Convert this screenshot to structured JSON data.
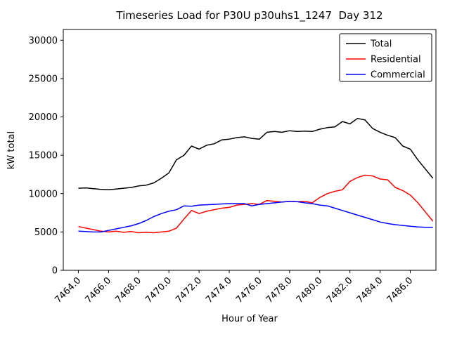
{
  "chart_data": {
    "type": "line",
    "title": "Timeseries Load for P30U p30uhs1_1247  Day 312",
    "xlabel": "Hour of Year",
    "ylabel": "kW total",
    "grid": false,
    "xlim": [
      7463.0,
      7487.7
    ],
    "ylim": [
      0,
      31400
    ],
    "xticks": [
      7464.0,
      7466.0,
      7468.0,
      7470.0,
      7472.0,
      7474.0,
      7476.0,
      7478.0,
      7480.0,
      7482.0,
      7484.0,
      7486.0
    ],
    "xtick_labels": [
      "7464.0",
      "7466.0",
      "7468.0",
      "7470.0",
      "7472.0",
      "7474.0",
      "7476.0",
      "7478.0",
      "7480.0",
      "7482.0",
      "7484.0",
      "7486.0"
    ],
    "yticks": [
      0,
      5000,
      10000,
      15000,
      20000,
      25000,
      30000
    ],
    "ytick_labels": [
      "0",
      "5000",
      "10000",
      "15000",
      "20000",
      "25000",
      "30000"
    ],
    "legend": {
      "position": "upper right",
      "entries": [
        "Total",
        "Residential",
        "Commercial"
      ]
    },
    "x": [
      7464.0,
      7464.5,
      7465.0,
      7465.5,
      7466.0,
      7466.5,
      7467.0,
      7467.5,
      7468.0,
      7468.5,
      7469.0,
      7469.5,
      7470.0,
      7470.5,
      7471.0,
      7471.5,
      7472.0,
      7472.5,
      7473.0,
      7473.5,
      7474.0,
      7474.5,
      7475.0,
      7475.5,
      7476.0,
      7476.5,
      7477.0,
      7477.5,
      7478.0,
      7478.5,
      7479.0,
      7479.5,
      7480.0,
      7480.5,
      7481.0,
      7481.5,
      7482.0,
      7482.5,
      7483.0,
      7483.5,
      7484.0,
      7484.5,
      7485.0,
      7485.5,
      7486.0,
      7486.5,
      7487.0,
      7487.5
    ],
    "series": [
      {
        "name": "Total",
        "color": "#000000",
        "values": [
          10700,
          10750,
          10650,
          10550,
          10500,
          10600,
          10700,
          10800,
          11000,
          11100,
          11400,
          12000,
          12700,
          14400,
          15000,
          16200,
          15800,
          16300,
          16500,
          17000,
          17100,
          17300,
          17400,
          17200,
          17100,
          18000,
          18100,
          18000,
          18200,
          18100,
          18150,
          18100,
          18400,
          18600,
          18700,
          19400,
          19100,
          19800,
          19600,
          18500,
          18000,
          17600,
          17300,
          16200,
          15800,
          14400,
          13200,
          12000
        ]
      },
      {
        "name": "Residential",
        "color": "#ff0000",
        "values": [
          5700,
          5500,
          5300,
          5100,
          5000,
          5100,
          4950,
          5050,
          4900,
          4950,
          4900,
          5000,
          5100,
          5500,
          6700,
          7800,
          7400,
          7700,
          7900,
          8100,
          8200,
          8500,
          8600,
          8700,
          8600,
          9100,
          9000,
          8900,
          9000,
          8950,
          9000,
          8800,
          9500,
          10000,
          10300,
          10500,
          11600,
          12100,
          12400,
          12300,
          11900,
          11800,
          10800,
          10400,
          9800,
          8800,
          7600,
          6400
        ]
      },
      {
        "name": "Commercial",
        "color": "#0000ff",
        "values": [
          5100,
          5050,
          5000,
          5000,
          5200,
          5400,
          5600,
          5800,
          6100,
          6500,
          7000,
          7400,
          7700,
          7900,
          8400,
          8350,
          8500,
          8550,
          8600,
          8650,
          8700,
          8700,
          8700,
          8400,
          8600,
          8700,
          8800,
          8900,
          9000,
          8950,
          8800,
          8700,
          8500,
          8400,
          8100,
          7800,
          7500,
          7200,
          6900,
          6600,
          6300,
          6100,
          5950,
          5850,
          5750,
          5650,
          5600,
          5600
        ]
      }
    ]
  }
}
